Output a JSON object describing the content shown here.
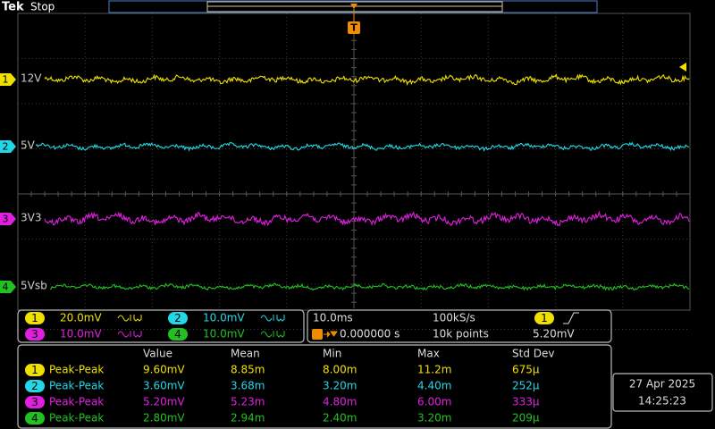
{
  "header": {
    "brand": "Tek",
    "status": "Stop"
  },
  "trigger": {
    "marker": "T"
  },
  "channels": [
    {
      "number": "1",
      "label": "12V",
      "color": "#f0e000",
      "scale": "20.0mV"
    },
    {
      "number": "2",
      "label": "5V",
      "color": "#22d8e6",
      "scale": "10.0mV"
    },
    {
      "number": "3",
      "label": "3V3",
      "color": "#e020e0",
      "scale": "10.0mV"
    },
    {
      "number": "4",
      "label": "5Vsb",
      "color": "#22c022",
      "scale": "10.0mV"
    }
  ],
  "acquisition": {
    "horizontal_scale": "10.0ms",
    "sample_rate": "100kS/s",
    "trigger_source": "1",
    "trigger_position": "0.000000 s",
    "record_length": "10k points",
    "trigger_level": "5.20mV"
  },
  "measurements": {
    "columns": [
      "Value",
      "Mean",
      "Min",
      "Max",
      "Std Dev"
    ],
    "rows": [
      {
        "source": "1",
        "name": "Peak-Peak",
        "cells": [
          "9.60mV",
          "8.85m",
          "8.00m",
          "11.2m",
          "675μ"
        ]
      },
      {
        "source": "2",
        "name": "Peak-Peak",
        "cells": [
          "3.60mV",
          "3.68m",
          "3.20m",
          "4.40m",
          "252μ"
        ]
      },
      {
        "source": "3",
        "name": "Peak-Peak",
        "cells": [
          "5.20mV",
          "5.23m",
          "4.80m",
          "6.00m",
          "333μ"
        ]
      },
      {
        "source": "4",
        "name": "Peak-Peak",
        "cells": [
          "2.80mV",
          "2.94m",
          "2.40m",
          "3.20m",
          "209μ"
        ]
      }
    ]
  },
  "datetime": {
    "date": "27 Apr 2025",
    "time": "14:25:23"
  }
}
